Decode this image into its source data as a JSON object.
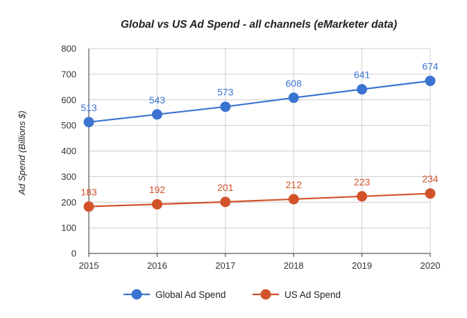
{
  "chart_data": {
    "type": "line",
    "title": "Global vs US Ad Spend - all channels (eMarketer data)",
    "xlabel": "",
    "ylabel": "Ad Spend (Billions $)",
    "x": [
      "2015",
      "2016",
      "2017",
      "2018",
      "2019",
      "2020"
    ],
    "ylim": [
      0,
      800
    ],
    "yticks": [
      0,
      100,
      200,
      300,
      400,
      500,
      600,
      700,
      800
    ],
    "grid": true,
    "legend_position": "bottom",
    "data_labels": true,
    "series": [
      {
        "name": "Global Ad Spend",
        "color": "#3b74d0",
        "values": [
          513,
          543,
          573,
          608,
          641,
          674
        ]
      },
      {
        "name": "US Ad Spend",
        "color": "#d2522a",
        "values": [
          183,
          192,
          201,
          212,
          223,
          234
        ]
      }
    ]
  }
}
